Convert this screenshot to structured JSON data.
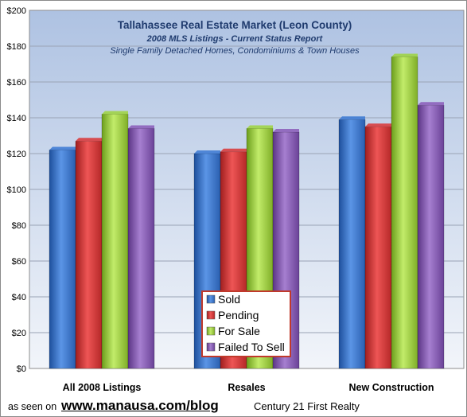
{
  "chart_data": {
    "type": "bar",
    "title": "Tallahassee Real Estate Market (Leon County)",
    "subtitle": "2008 MLS Listings - Current Status Report",
    "subtitle2": "Single Family Detached Homes, Condominiums & Town Houses",
    "categories": [
      "All 2008  Listings",
      "Resales",
      "New Construction"
    ],
    "series": [
      {
        "name": "Sold",
        "values": [
          122,
          120,
          139
        ]
      },
      {
        "name": "Pending",
        "values": [
          127,
          121,
          135
        ]
      },
      {
        "name": "For Sale",
        "values": [
          142,
          134,
          174
        ]
      },
      {
        "name": "Failed To Sell",
        "values": [
          134,
          132,
          147
        ]
      }
    ],
    "ylim": [
      0,
      200
    ],
    "yticks": [
      "$0",
      "$20",
      "$40",
      "$60",
      "$80",
      "$100",
      "$120",
      "$140",
      "$160",
      "$180",
      "$200"
    ],
    "ytick_values": [
      0,
      20,
      40,
      60,
      80,
      100,
      120,
      140,
      160,
      180,
      200
    ],
    "grid": true,
    "legend_position": "bottom-center",
    "colors": {
      "Sold": "#3a78d4",
      "Pending": "#d93535",
      "For Sale": "#9dd33d",
      "Failed To Sell": "#8a5bb8"
    }
  },
  "footer": {
    "seen_text": "as seen on",
    "url_text": "www.manausa.com/blog",
    "realty_text": "Century 21 First Realty"
  }
}
